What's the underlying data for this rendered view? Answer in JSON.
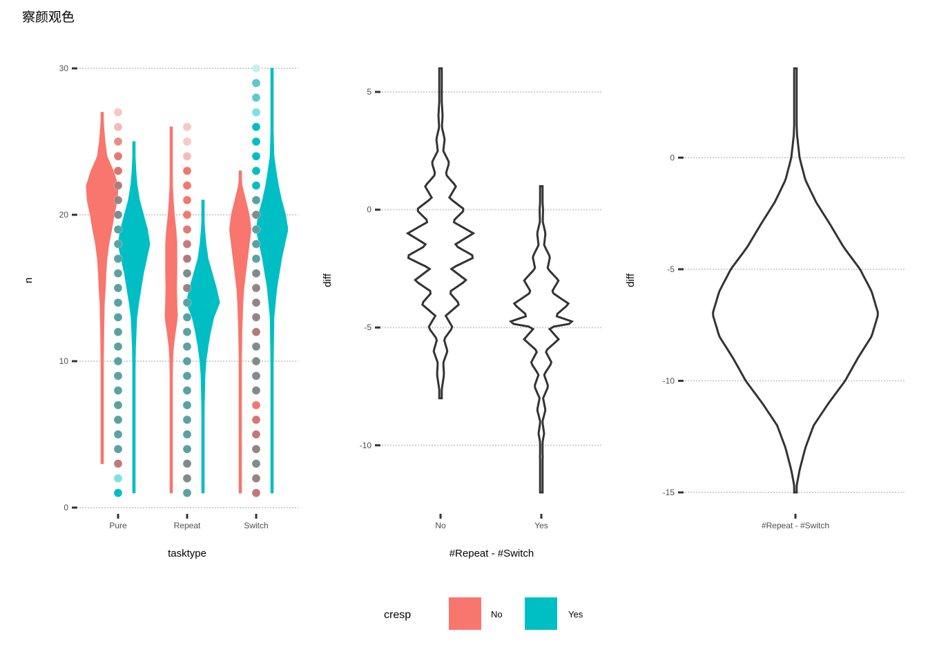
{
  "title": "察颜观色",
  "colors": {
    "No": "#F8766D",
    "Yes": "#00BFC4",
    "outline": "#333333",
    "grid": "#cfcfcf",
    "tick": "#333333"
  },
  "legend": {
    "title": "cresp",
    "items": [
      {
        "label": "No",
        "color": "#F8766D"
      },
      {
        "label": "Yes",
        "color": "#00BFC4"
      }
    ],
    "position": "bottom"
  },
  "chart_data": [
    {
      "type": "violin",
      "xlabel": "tasktype",
      "ylabel": "n",
      "ylim": [
        0,
        30
      ],
      "yticks": [
        0,
        10,
        20,
        30
      ],
      "categories": [
        "Pure",
        "Repeat",
        "Switch"
      ],
      "grid": true,
      "series": [
        {
          "name": "No",
          "category": "Pure",
          "range": [
            3,
            27
          ],
          "mode": 21,
          "max_halfwidth": 1.0,
          "density": [
            [
              3,
              0.05
            ],
            [
              6,
              0.06
            ],
            [
              8,
              0.07
            ],
            [
              10,
              0.08
            ],
            [
              12,
              0.1
            ],
            [
              14,
              0.14
            ],
            [
              15,
              0.2
            ],
            [
              16,
              0.24
            ],
            [
              17,
              0.3
            ],
            [
              18,
              0.42
            ],
            [
              19,
              0.6
            ],
            [
              20,
              0.75
            ],
            [
              21,
              0.95
            ],
            [
              22,
              1.0
            ],
            [
              23,
              0.7
            ],
            [
              24,
              0.3
            ],
            [
              25,
              0.18
            ],
            [
              26,
              0.1
            ],
            [
              27,
              0.05
            ]
          ]
        },
        {
          "name": "Yes",
          "category": "Pure",
          "range": [
            1,
            25
          ],
          "mode": 18,
          "max_halfwidth": 1.0,
          "density": [
            [
              1,
              0.05
            ],
            [
              5,
              0.06
            ],
            [
              9,
              0.07
            ],
            [
              11,
              0.1
            ],
            [
              13,
              0.18
            ],
            [
              14,
              0.3
            ],
            [
              15,
              0.45
            ],
            [
              16,
              0.6
            ],
            [
              17,
              0.8
            ],
            [
              18,
              1.0
            ],
            [
              19,
              0.85
            ],
            [
              20,
              0.6
            ],
            [
              21,
              0.35
            ],
            [
              22,
              0.2
            ],
            [
              23,
              0.12
            ],
            [
              24,
              0.08
            ],
            [
              25,
              0.04
            ]
          ]
        },
        {
          "name": "No",
          "category": "Repeat",
          "range": [
            1,
            26
          ],
          "mode": 13,
          "max_halfwidth": 0.65,
          "density": [
            [
              1,
              0.05
            ],
            [
              5,
              0.07
            ],
            [
              8,
              0.1
            ],
            [
              10,
              0.14
            ],
            [
              11,
              0.22
            ],
            [
              12,
              0.4
            ],
            [
              13,
              0.6
            ],
            [
              14,
              0.55
            ],
            [
              15,
              0.52
            ],
            [
              16,
              0.55
            ],
            [
              17,
              0.55
            ],
            [
              18,
              0.55
            ],
            [
              19,
              0.45
            ],
            [
              20,
              0.3
            ],
            [
              21,
              0.2
            ],
            [
              22,
              0.13
            ],
            [
              24,
              0.08
            ],
            [
              26,
              0.04
            ]
          ]
        },
        {
          "name": "Yes",
          "category": "Repeat",
          "range": [
            1,
            21
          ],
          "mode": 14,
          "max_halfwidth": 1.05,
          "density": [
            [
              1,
              0.04
            ],
            [
              4,
              0.05
            ],
            [
              7,
              0.08
            ],
            [
              9,
              0.12
            ],
            [
              10,
              0.18
            ],
            [
              11,
              0.3
            ],
            [
              12,
              0.45
            ],
            [
              13,
              0.65
            ],
            [
              14,
              1.0
            ],
            [
              15,
              0.8
            ],
            [
              16,
              0.55
            ],
            [
              17,
              0.3
            ],
            [
              18,
              0.18
            ],
            [
              19,
              0.1
            ],
            [
              20,
              0.06
            ],
            [
              21,
              0.03
            ]
          ]
        },
        {
          "name": "No",
          "category": "Switch",
          "range": [
            1,
            23
          ],
          "mode": 19,
          "max_halfwidth": 0.75,
          "density": [
            [
              1,
              0.05
            ],
            [
              5,
              0.06
            ],
            [
              8,
              0.08
            ],
            [
              10,
              0.1
            ],
            [
              12,
              0.14
            ],
            [
              14,
              0.22
            ],
            [
              15,
              0.3
            ],
            [
              16,
              0.45
            ],
            [
              17,
              0.6
            ],
            [
              18,
              0.75
            ],
            [
              19,
              0.9
            ],
            [
              20,
              0.75
            ],
            [
              21,
              0.45
            ],
            [
              22,
              0.15
            ],
            [
              23,
              0.05
            ]
          ]
        },
        {
          "name": "Yes",
          "category": "Switch",
          "range": [
            1,
            30
          ],
          "mode": 19,
          "max_halfwidth": 1.0,
          "density": [
            [
              1,
              0.05
            ],
            [
              6,
              0.06
            ],
            [
              10,
              0.08
            ],
            [
              13,
              0.12
            ],
            [
              15,
              0.3
            ],
            [
              16,
              0.45
            ],
            [
              17,
              0.6
            ],
            [
              18,
              0.8
            ],
            [
              19,
              1.0
            ],
            [
              20,
              0.85
            ],
            [
              21,
              0.6
            ],
            [
              22,
              0.4
            ],
            [
              23,
              0.25
            ],
            [
              24,
              0.12
            ],
            [
              26,
              0.07
            ],
            [
              28,
              0.05
            ],
            [
              30,
              0.04
            ]
          ]
        }
      ],
      "points": [
        {
          "category": "Pure",
          "y": [
            1,
            2,
            3,
            4,
            5,
            6,
            7,
            8,
            9,
            10,
            11,
            12,
            13,
            14,
            15,
            16,
            17,
            18,
            19,
            20,
            21,
            22,
            23,
            24,
            25,
            26,
            27
          ],
          "colors": [
            "#00BFC4",
            "#7fdfe1",
            "#c0797a",
            "#5aa1a3",
            "#5aa1a3",
            "#5aa1a3",
            "#5aa1a3",
            "#5aa1a3",
            "#5aa1a3",
            "#5aa1a3",
            "#5aa1a3",
            "#5aa1a3",
            "#5aa1a3",
            "#5aa1a3",
            "#5aa1a3",
            "#5aa1a3",
            "#5aa1a3",
            "#5aa1a3",
            "#5aa1a3",
            "#7e8c8c",
            "#948585",
            "#b07b7a",
            "#d67572",
            "#e27a74",
            "#e88f89",
            "#f5bcb7",
            "#f7c8c4"
          ]
        },
        {
          "category": "Repeat",
          "y": [
            1,
            2,
            3,
            4,
            5,
            6,
            7,
            8,
            9,
            10,
            11,
            12,
            13,
            14,
            15,
            16,
            17,
            18,
            19,
            20,
            21,
            22,
            23,
            24,
            25,
            26
          ],
          "colors": [
            "#5aa1a3",
            "#7e8c8c",
            "#7e8c8c",
            "#5aa1a3",
            "#5aa1a3",
            "#5aa1a3",
            "#5aa1a3",
            "#5aa1a3",
            "#5aa1a3",
            "#5aa1a3",
            "#5aa1a3",
            "#5aa1a3",
            "#5aa1a3",
            "#5aa1a3",
            "#948585",
            "#7e8c8c",
            "#b07b7a",
            "#c77c7a",
            "#e27a74",
            "#f07a71",
            "#f27770",
            "#f27770",
            "#f27770",
            "#f5bcb7",
            "#f7c8c4",
            "#f7c8c4"
          ]
        },
        {
          "category": "Switch",
          "y": [
            1,
            2,
            3,
            4,
            5,
            6,
            7,
            8,
            9,
            10,
            11,
            12,
            13,
            14,
            15,
            16,
            17,
            18,
            19,
            20,
            21,
            22,
            23,
            24,
            25,
            26,
            27,
            28,
            29,
            30
          ],
          "colors": [
            "#c0797a",
            "#948585",
            "#7e8c8c",
            "#948585",
            "#c0797a",
            "#d67572",
            "#f27770",
            "#7e8c8c",
            "#7e8c8c",
            "#7e8c8c",
            "#7e8c8c",
            "#b07b7a",
            "#948585",
            "#948585",
            "#948585",
            "#7e8c8c",
            "#5aa1a3",
            "#5aa1a3",
            "#5aa1a3",
            "#7e8c8c",
            "#5aa1a3",
            "#00BFC4",
            "#00BFC4",
            "#00BFC4",
            "#00BFC4",
            "#00BFC4",
            "#7fdfe1",
            "#5cc9cc",
            "#5cc9cc",
            "#c6eff0"
          ]
        }
      ]
    },
    {
      "type": "violin",
      "xlabel": "#Repeat - #Switch",
      "ylabel": "diff",
      "ylim": [
        -12,
        6
      ],
      "yticks": [
        5,
        0,
        -5,
        -10
      ],
      "categories": [
        "No",
        "Yes"
      ],
      "grid": true,
      "series": [
        {
          "name": "No",
          "range": [
            -8,
            6
          ],
          "max_halfwidth": 1.0,
          "density": [
            [
              -8,
              0.0
            ],
            [
              -7.5,
              0.05
            ],
            [
              -7,
              0.1
            ],
            [
              -6.5,
              0.08
            ],
            [
              -6,
              0.2
            ],
            [
              -5.5,
              0.1
            ],
            [
              -5,
              0.35
            ],
            [
              -4.5,
              0.15
            ],
            [
              -4,
              0.55
            ],
            [
              -3.5,
              0.25
            ],
            [
              -3,
              0.75
            ],
            [
              -2.5,
              0.3
            ],
            [
              -2,
              1.0
            ],
            [
              -1.5,
              0.4
            ],
            [
              -1,
              0.95
            ],
            [
              -0.5,
              0.35
            ],
            [
              0,
              0.7
            ],
            [
              0.5,
              0.25
            ],
            [
              1,
              0.45
            ],
            [
              1.5,
              0.15
            ],
            [
              2,
              0.25
            ],
            [
              2.5,
              0.08
            ],
            [
              3,
              0.12
            ],
            [
              3.5,
              0.04
            ],
            [
              4,
              0.06
            ],
            [
              5,
              0.02
            ],
            [
              6,
              0.0
            ]
          ]
        },
        {
          "name": "Yes",
          "range": [
            -12,
            1
          ],
          "max_halfwidth": 1.0,
          "density": [
            [
              -12,
              0.0
            ],
            [
              -11,
              0.02
            ],
            [
              -10.5,
              0.04
            ],
            [
              -10,
              0.02
            ],
            [
              -9.5,
              0.08
            ],
            [
              -9,
              0.03
            ],
            [
              -8.5,
              0.12
            ],
            [
              -8,
              0.05
            ],
            [
              -7.5,
              0.2
            ],
            [
              -7,
              0.08
            ],
            [
              -6.5,
              0.3
            ],
            [
              -6,
              0.12
            ],
            [
              -5.5,
              0.5
            ],
            [
              -5,
              0.2
            ],
            [
              -4.8,
              1.0
            ],
            [
              -4.5,
              0.4
            ],
            [
              -4,
              0.8
            ],
            [
              -3.5,
              0.3
            ],
            [
              -3,
              0.5
            ],
            [
              -2.5,
              0.18
            ],
            [
              -2,
              0.25
            ],
            [
              -1.5,
              0.08
            ],
            [
              -1,
              0.12
            ],
            [
              -0.5,
              0.04
            ],
            [
              0,
              0.05
            ],
            [
              1,
              0.0
            ]
          ]
        }
      ]
    },
    {
      "type": "violin",
      "xlabel": "",
      "ylabel": "diff",
      "ylim": [
        -15,
        4
      ],
      "yticks": [
        0,
        -5,
        -10,
        -15
      ],
      "categories": [
        "#Repeat - #Switch"
      ],
      "grid": true,
      "series": [
        {
          "name": "",
          "range": [
            -15,
            4
          ],
          "max_halfwidth": 1.0,
          "density": [
            [
              -15,
              0.0
            ],
            [
              -14,
              0.05
            ],
            [
              -13,
              0.12
            ],
            [
              -12,
              0.22
            ],
            [
              -11,
              0.4
            ],
            [
              -10,
              0.6
            ],
            [
              -9,
              0.75
            ],
            [
              -8,
              0.92
            ],
            [
              -7,
              1.0
            ],
            [
              -6,
              0.92
            ],
            [
              -5,
              0.78
            ],
            [
              -4,
              0.58
            ],
            [
              -3,
              0.42
            ],
            [
              -2,
              0.25
            ],
            [
              -1,
              0.12
            ],
            [
              0,
              0.05
            ],
            [
              1,
              0.02
            ],
            [
              2,
              0.01
            ],
            [
              3,
              0.005
            ],
            [
              4,
              0.0
            ]
          ]
        }
      ]
    }
  ]
}
